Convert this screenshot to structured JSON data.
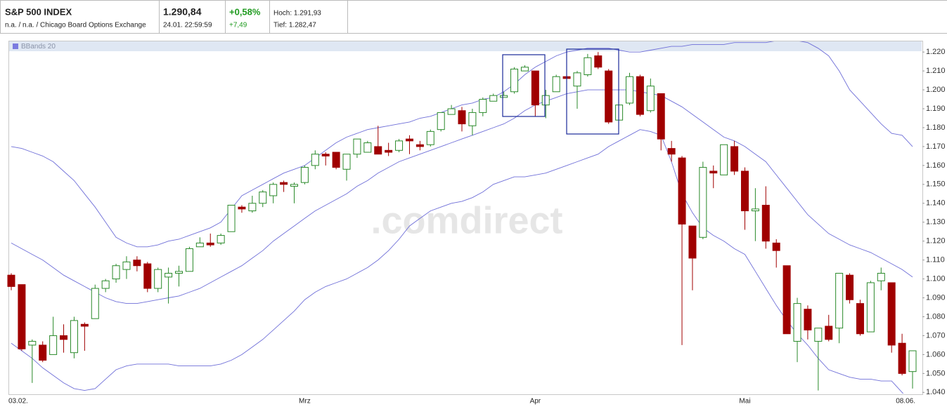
{
  "header": {
    "name": "S&P 500 INDEX",
    "exchange": "n.a. / n.a. / Chicago Board Options Exchange",
    "price": "1.290,84",
    "time": "24.01. 22:59:59",
    "change_pct": "+0,58%",
    "change_abs": "+7,49",
    "high": "Hoch: 1.291,93",
    "low": "Tief: 1.282,47"
  },
  "chart_data": {
    "type": "candlestick",
    "watermark": ".comdirect",
    "categories": [
      "03.02.",
      null,
      null,
      null,
      null,
      null,
      null,
      null,
      null,
      null,
      null,
      null,
      null,
      null,
      null,
      null,
      null,
      null,
      null,
      null,
      null,
      null,
      null,
      null,
      null,
      null,
      null,
      null,
      "Mrz",
      null,
      null,
      null,
      null,
      null,
      null,
      null,
      null,
      null,
      null,
      null,
      null,
      null,
      null,
      null,
      null,
      null,
      null,
      null,
      null,
      null,
      "Apr",
      null,
      null,
      null,
      null,
      null,
      null,
      null,
      null,
      null,
      null,
      null,
      null,
      null,
      null,
      null,
      null,
      null,
      null,
      null,
      "Mai",
      null,
      null,
      null,
      null,
      null,
      null,
      null,
      null,
      null,
      null,
      null,
      null,
      null,
      null,
      null,
      "08.06."
    ],
    "open": [
      1102,
      1097,
      1065,
      1065,
      1060,
      1070,
      1061,
      1076,
      1079,
      1095,
      1100,
      1105,
      1110,
      1108,
      1095,
      1101,
      1103,
      1104,
      1117,
      1119,
      1119,
      1125,
      1138,
      1136,
      1140,
      1144,
      1151,
      1149,
      1151,
      1160,
      1166,
      1167,
      1158,
      1166,
      1167,
      1170,
      1168,
      1168,
      1174,
      1171,
      1171,
      1179,
      1187,
      1189,
      1181,
      1188,
      1194,
      1196,
      1199,
      1210,
      1210,
      1192,
      1199,
      1207,
      1202,
      1208,
      1218,
      1210,
      1184,
      1193,
      1207,
      1189,
      1198,
      1169,
      1164,
      1128,
      1122,
      1157,
      1155,
      1170,
      1157,
      1136,
      1139,
      1119,
      1107,
      1067,
      1084,
      1067,
      1075,
      1074,
      1102,
      1087,
      1072,
      1099,
      1098,
      1066,
      1051
    ],
    "high": [
      1103,
      1097,
      1068,
      1067,
      1080,
      1076,
      1080,
      1077,
      1097,
      1100,
      1108,
      1112,
      1112,
      1109,
      1106,
      1106,
      1107,
      1117,
      1122,
      1124,
      1124,
      1139,
      1139,
      1144,
      1147,
      1151,
      1152,
      1151,
      1160,
      1168,
      1167,
      1167,
      1166,
      1174,
      1173,
      1181,
      1172,
      1174,
      1176,
      1173,
      1179,
      1188,
      1192,
      1191,
      1190,
      1196,
      1198,
      1199,
      1212,
      1213,
      1210,
      1200,
      1208,
      1208,
      1210,
      1219,
      1220,
      1211,
      1192,
      1209,
      1208,
      1206,
      1198,
      1173,
      1165,
      1128,
      1162,
      1160,
      1171,
      1173,
      1159,
      1148,
      1149,
      1121,
      1107,
      1090,
      1086,
      1074,
      1081,
      1103,
      1103,
      1089,
      1099,
      1106,
      1098,
      1071,
      1062
    ],
    "low": [
      1094,
      1062,
      1045,
      1056,
      1060,
      1061,
      1058,
      1062,
      1079,
      1093,
      1098,
      1100,
      1104,
      1093,
      1093,
      1087,
      1096,
      1104,
      1117,
      1117,
      1118,
      1125,
      1135,
      1135,
      1138,
      1140,
      1146,
      1140,
      1150,
      1158,
      1160,
      1158,
      1152,
      1164,
      1167,
      1166,
      1165,
      1167,
      1166,
      1168,
      1170,
      1178,
      1187,
      1178,
      1176,
      1186,
      1194,
      1196,
      1198,
      1210,
      1186,
      1185,
      1199,
      1206,
      1190,
      1207,
      1211,
      1182,
      1184,
      1192,
      1186,
      1188,
      1168,
      1162,
      1065,
      1094,
      1121,
      1148,
      1155,
      1155,
      1126,
      1120,
      1116,
      1106,
      1071,
      1056,
      1068,
      1041,
      1067,
      1066,
      1087,
      1070,
      1072,
      1094,
      1061,
      1049,
      1042
    ],
    "close": [
      1096,
      1063,
      1067,
      1057,
      1070,
      1068,
      1078,
      1075,
      1095,
      1099,
      1107,
      1109,
      1107,
      1095,
      1105,
      1103,
      1104,
      1116,
      1119,
      1118,
      1123,
      1139,
      1137,
      1140,
      1146,
      1150,
      1150,
      1150,
      1159,
      1166,
      1165,
      1159,
      1166,
      1174,
      1172,
      1166,
      1167,
      1173,
      1173,
      1170,
      1178,
      1188,
      1190,
      1182,
      1188,
      1195,
      1197,
      1197,
      1211,
      1212,
      1192,
      1197,
      1207,
      1206,
      1209,
      1217,
      1212,
      1183,
      1192,
      1207,
      1187,
      1202,
      1174,
      1166,
      1129,
      1111,
      1159,
      1156,
      1171,
      1157,
      1136,
      1137,
      1120,
      1115,
      1071,
      1087,
      1073,
      1074,
      1068,
      1103,
      1089,
      1071,
      1098,
      1103,
      1065,
      1050,
      1062
    ],
    "up_color": "#2a8a2a",
    "down_color": "#a00000",
    "indicator": {
      "name": "BBands 20",
      "color": "#6f6fd8",
      "upper": [
        1170,
        1169,
        1167,
        1165,
        1162,
        1157,
        1152,
        1145,
        1138,
        1130,
        1122,
        1119,
        1117,
        1117,
        1118,
        1120,
        1121,
        1123,
        1125,
        1127,
        1130,
        1137,
        1144,
        1147,
        1150,
        1153,
        1156,
        1158,
        1160,
        1164,
        1168,
        1172,
        1175,
        1177,
        1179,
        1180,
        1181,
        1182,
        1183,
        1185,
        1186,
        1188,
        1190,
        1192,
        1193,
        1195,
        1196,
        1199,
        1203,
        1208,
        1212,
        1215,
        1218,
        1220,
        1221,
        1222,
        1222,
        1222,
        1221,
        1220,
        1220,
        1221,
        1222,
        1223,
        1223,
        1224,
        1224,
        1224,
        1224,
        1225,
        1225,
        1225,
        1225,
        1226,
        1226,
        1226,
        1225,
        1222,
        1218,
        1210,
        1200,
        1194,
        1188,
        1182,
        1177,
        1176,
        1170
      ],
      "middle": [
        1119,
        1116,
        1113,
        1110,
        1106,
        1102,
        1099,
        1096,
        1093,
        1090,
        1088,
        1087,
        1087,
        1088,
        1089,
        1090,
        1091,
        1093,
        1095,
        1098,
        1101,
        1104,
        1107,
        1111,
        1115,
        1120,
        1124,
        1128,
        1132,
        1136,
        1139,
        1142,
        1145,
        1149,
        1152,
        1156,
        1159,
        1162,
        1164,
        1166,
        1168,
        1170,
        1172,
        1174,
        1176,
        1178,
        1180,
        1182,
        1185,
        1189,
        1192,
        1194,
        1196,
        1198,
        1199,
        1200,
        1200,
        1200,
        1200,
        1200,
        1199,
        1198,
        1197,
        1194,
        1191,
        1187,
        1183,
        1179,
        1175,
        1173,
        1170,
        1166,
        1162,
        1155,
        1148,
        1141,
        1134,
        1129,
        1124,
        1121,
        1118,
        1116,
        1114,
        1111,
        1108,
        1105,
        1101
      ],
      "lower": [
        1066,
        1062,
        1058,
        1053,
        1049,
        1045,
        1042,
        1041,
        1042,
        1047,
        1052,
        1054,
        1055,
        1055,
        1055,
        1055,
        1054,
        1054,
        1054,
        1054,
        1055,
        1057,
        1060,
        1064,
        1068,
        1073,
        1078,
        1083,
        1089,
        1093,
        1096,
        1098,
        1100,
        1103,
        1106,
        1110,
        1115,
        1121,
        1128,
        1132,
        1136,
        1138,
        1140,
        1141,
        1143,
        1146,
        1150,
        1152,
        1154,
        1154,
        1155,
        1156,
        1158,
        1160,
        1162,
        1164,
        1166,
        1170,
        1173,
        1176,
        1179,
        1178,
        1176,
        1162,
        1145,
        1135,
        1127,
        1123,
        1120,
        1116,
        1113,
        1104,
        1095,
        1086,
        1078,
        1071,
        1065,
        1058,
        1052,
        1050,
        1048,
        1047,
        1047,
        1046,
        1046,
        1040,
        1034
      ]
    },
    "ylim": [
      1039,
      1226
    ],
    "yticks": [
      {
        "value": 1040,
        "label": "1.040"
      },
      {
        "value": 1050,
        "label": "1.050"
      },
      {
        "value": 1060,
        "label": "1.060"
      },
      {
        "value": 1070,
        "label": "1.070"
      },
      {
        "value": 1080,
        "label": "1.080"
      },
      {
        "value": 1090,
        "label": "1.090"
      },
      {
        "value": 1100,
        "label": "1.100"
      },
      {
        "value": 1110,
        "label": "1.110"
      },
      {
        "value": 1120,
        "label": "1.120"
      },
      {
        "value": 1130,
        "label": "1.130"
      },
      {
        "value": 1140,
        "label": "1.140"
      },
      {
        "value": 1150,
        "label": "1.150"
      },
      {
        "value": 1160,
        "label": "1.160"
      },
      {
        "value": 1170,
        "label": "1.170"
      },
      {
        "value": 1180,
        "label": "1.180"
      },
      {
        "value": 1190,
        "label": "1.190"
      },
      {
        "value": 1200,
        "label": "1.200"
      },
      {
        "value": 1210,
        "label": "1.210"
      },
      {
        "value": 1220,
        "label": "1.220"
      }
    ],
    "grid": false
  }
}
